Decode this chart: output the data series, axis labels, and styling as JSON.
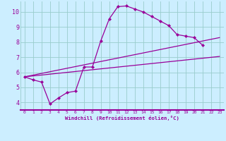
{
  "bg_color": "#cceeff",
  "line_color": "#990099",
  "grid_color": "#99cccc",
  "xlim": [
    -0.5,
    23.5
  ],
  "ylim": [
    3.5,
    10.7
  ],
  "xticks": [
    0,
    1,
    2,
    3,
    4,
    5,
    6,
    7,
    8,
    9,
    10,
    11,
    12,
    13,
    14,
    15,
    16,
    17,
    18,
    19,
    20,
    21,
    22,
    23
  ],
  "yticks": [
    4,
    5,
    6,
    7,
    8,
    9,
    10
  ],
  "xlabel": "Windchill (Refroidissement éolien,°C)",
  "curve_x": [
    0,
    1,
    2,
    3,
    4,
    5,
    6,
    7,
    8,
    9,
    10,
    11,
    12,
    13,
    14,
    15,
    16,
    17,
    18,
    19,
    20,
    21
  ],
  "curve_y": [
    5.7,
    5.5,
    5.35,
    3.9,
    4.3,
    4.65,
    4.75,
    6.35,
    6.35,
    8.1,
    9.55,
    10.35,
    10.4,
    10.2,
    10.0,
    9.7,
    9.4,
    9.1,
    8.5,
    8.4,
    8.3,
    7.8
  ],
  "line1_x": [
    0,
    23
  ],
  "line1_y": [
    5.7,
    7.05
  ],
  "line2_x": [
    0,
    23
  ],
  "line2_y": [
    5.7,
    8.3
  ]
}
